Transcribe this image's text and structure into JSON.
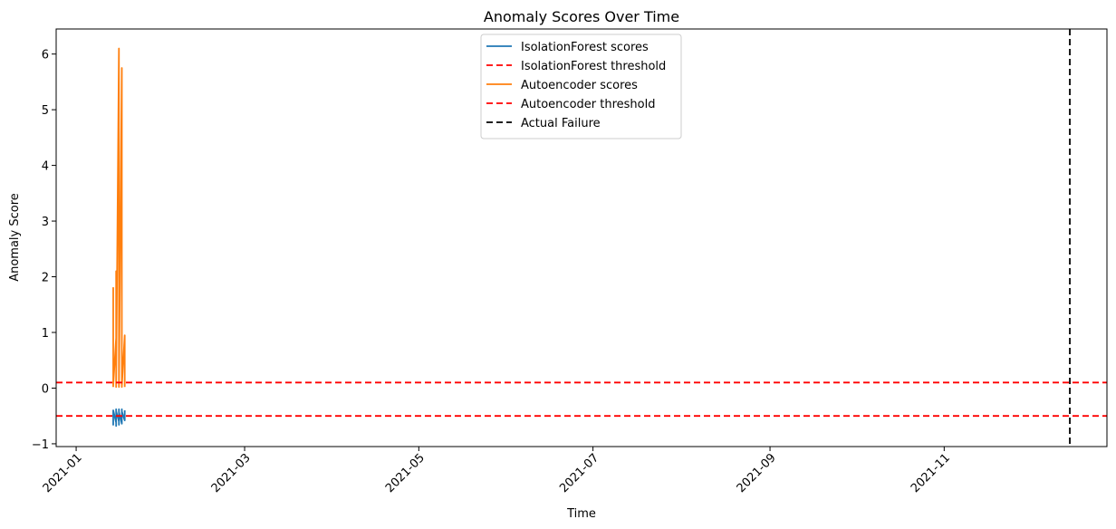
{
  "chart_data": {
    "type": "line",
    "title": "Anomaly Scores Over Time",
    "xlabel": "Time",
    "ylabel": "Anomaly Score",
    "xlim": [
      "2020-12-25",
      "2021-12-28"
    ],
    "ylim": [
      -1.05,
      6.45
    ],
    "x_ticks": [
      "2021-01",
      "2021-03",
      "2021-05",
      "2021-07",
      "2021-09",
      "2021-11"
    ],
    "y_ticks": [
      -1,
      0,
      1,
      2,
      3,
      4,
      5,
      6
    ],
    "grid": false,
    "legend_position": "top-center",
    "series": [
      {
        "name": "IsolationForest scores",
        "kind": "line",
        "color": "#1f77b4",
        "points": [
          [
            "2021-01-14",
            -0.42
          ],
          [
            "2021-01-14",
            -0.66
          ],
          [
            "2021-01-14",
            -0.4
          ],
          [
            "2021-01-15",
            -0.62
          ],
          [
            "2021-01-15",
            -0.38
          ],
          [
            "2021-01-15",
            -0.68
          ],
          [
            "2021-01-15",
            -0.41
          ],
          [
            "2021-01-16",
            -0.6
          ],
          [
            "2021-01-16",
            -0.38
          ],
          [
            "2021-01-16",
            -0.66
          ],
          [
            "2021-01-16",
            -0.43
          ],
          [
            "2021-01-17",
            -0.64
          ],
          [
            "2021-01-17",
            -0.38
          ],
          [
            "2021-01-17",
            -0.62
          ],
          [
            "2021-01-17",
            -0.42
          ],
          [
            "2021-01-18",
            -0.58
          ],
          [
            "2021-01-18",
            -0.4
          ]
        ]
      },
      {
        "name": "IsolationForest threshold",
        "kind": "hline",
        "color": "#ff0000",
        "dashed": true,
        "y": -0.5
      },
      {
        "name": "Autoencoder scores",
        "kind": "line",
        "color": "#ff7f0e",
        "points": [
          [
            "2021-01-14",
            0.02
          ],
          [
            "2021-01-14",
            1.8
          ],
          [
            "2021-01-14",
            0.05
          ],
          [
            "2021-01-15",
            0.9
          ],
          [
            "2021-01-15",
            0.02
          ],
          [
            "2021-01-15",
            2.1
          ],
          [
            "2021-01-15",
            0.05
          ],
          [
            "2021-01-16",
            6.1
          ],
          [
            "2021-01-16",
            0.02
          ],
          [
            "2021-01-16",
            1.2
          ],
          [
            "2021-01-16",
            0.03
          ],
          [
            "2021-01-17",
            5.75
          ],
          [
            "2021-01-17",
            0.02
          ],
          [
            "2021-01-17",
            2.6
          ],
          [
            "2021-01-17",
            0.04
          ],
          [
            "2021-01-18",
            0.95
          ],
          [
            "2021-01-18",
            0.02
          ]
        ]
      },
      {
        "name": "Autoencoder threshold",
        "kind": "hline",
        "color": "#ff0000",
        "dashed": true,
        "y": 0.1
      },
      {
        "name": "Actual Failure",
        "kind": "vline",
        "color": "#000000",
        "dashed": true,
        "x": "2021-12-15"
      }
    ]
  }
}
